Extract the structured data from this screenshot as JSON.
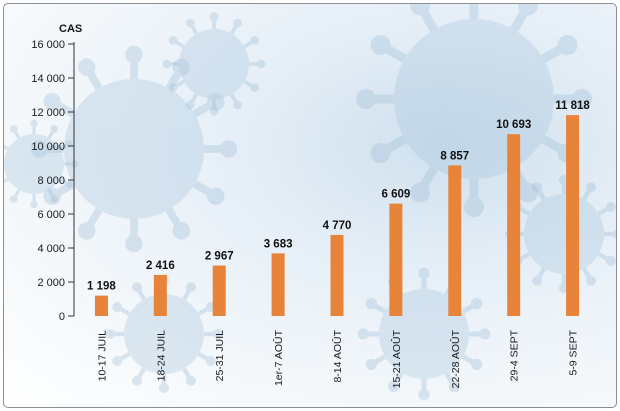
{
  "chart_data": {
    "type": "bar",
    "ylabel": "CAS",
    "categories": [
      "10-17 JUIL",
      "18-24 JUIL",
      "25-31 JUIL",
      "1er-7 AOÛT",
      "8-14 AOÛT",
      "15-21 AOÛT",
      "22-28 AOÛT",
      "29-4 SEPT",
      "5-9 SEPT"
    ],
    "values": [
      1198,
      2416,
      2967,
      3683,
      4770,
      6609,
      8857,
      10693,
      11818
    ],
    "value_labels": [
      "1 198",
      "2 416",
      "2 967",
      "3 683",
      "4 770",
      "6 609",
      "8 857",
      "10 693",
      "11 818"
    ],
    "yticks": [
      0,
      2000,
      4000,
      6000,
      8000,
      10000,
      12000,
      14000,
      16000
    ],
    "ytick_labels": [
      "0",
      "2 000",
      "4 000",
      "6 000",
      "8 000",
      "10 000",
      "12 000",
      "14 000",
      "16 000"
    ],
    "ylim": [
      0,
      16000
    ],
    "bar_color": "#e8833a",
    "grid": false
  }
}
